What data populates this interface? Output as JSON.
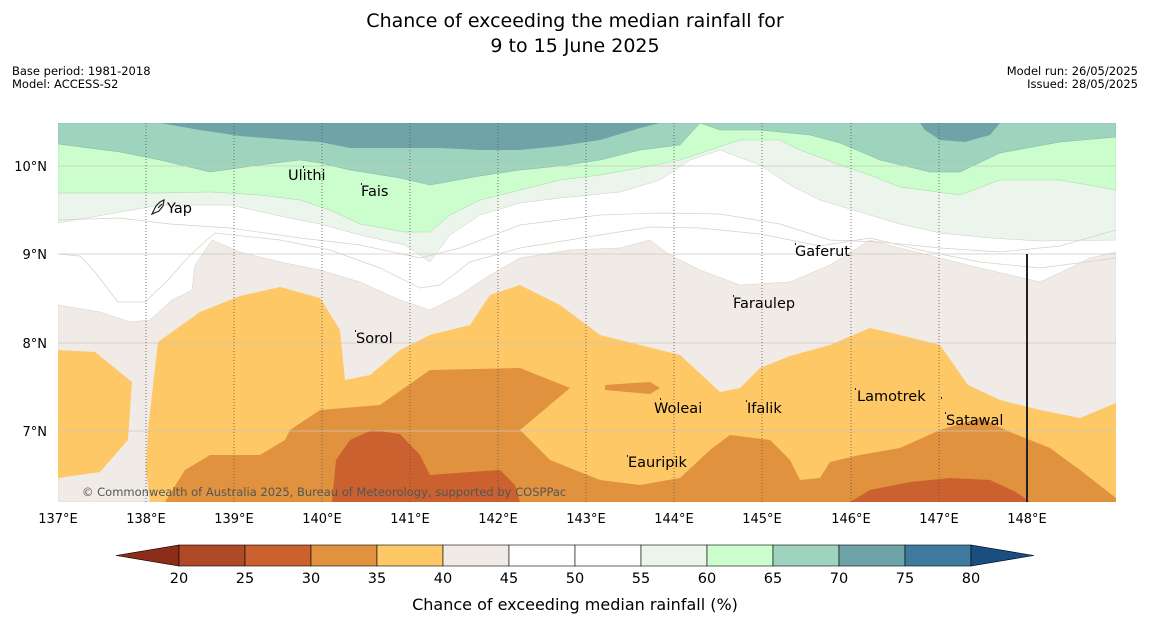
{
  "title_line1": "Chance of exceeding the median rainfall for",
  "title_line2": "9 to 15 June 2025",
  "meta_left": [
    "Base period: 1981-2018",
    "Model: ACCESS-S2"
  ],
  "meta_right": [
    "Model run: 26/05/2025",
    "Issued: 28/05/2025"
  ],
  "copyright": "© Commonwealth of Australia 2025, Bureau of Meteorology, supported by COSPPac",
  "lat_labels": [
    "10°N",
    "9°N",
    "8°N",
    "7°N"
  ],
  "lon_labels": [
    "137°E",
    "138°E",
    "139°E",
    "140°E",
    "141°E",
    "142°E",
    "143°E",
    "144°E",
    "145°E",
    "146°E",
    "147°E",
    "148°E"
  ],
  "places": [
    "Yap",
    "Ulithi",
    "Fais",
    "Gaferut",
    "Faraulep",
    "Sorol",
    "Lamotrek",
    "Woleai",
    "Ifalik",
    "Satawal",
    "Eauripik"
  ],
  "colorbar": {
    "title": "Chance of exceeding median rainfall (%)",
    "ticks": [
      "20",
      "25",
      "30",
      "35",
      "40",
      "45",
      "50",
      "55",
      "60",
      "65",
      "70",
      "75",
      "80"
    ],
    "colors": [
      "#8c2d1a",
      "#b04a26",
      "#cb612e",
      "#e0923f",
      "#fdc865",
      "#f0ebe6",
      "#ffffff",
      "#ffffff",
      "#ebf5eb",
      "#ccfdcc",
      "#9ed4bd",
      "#6ea4a7",
      "#3e7a9e",
      "#1a4e80"
    ]
  }
}
